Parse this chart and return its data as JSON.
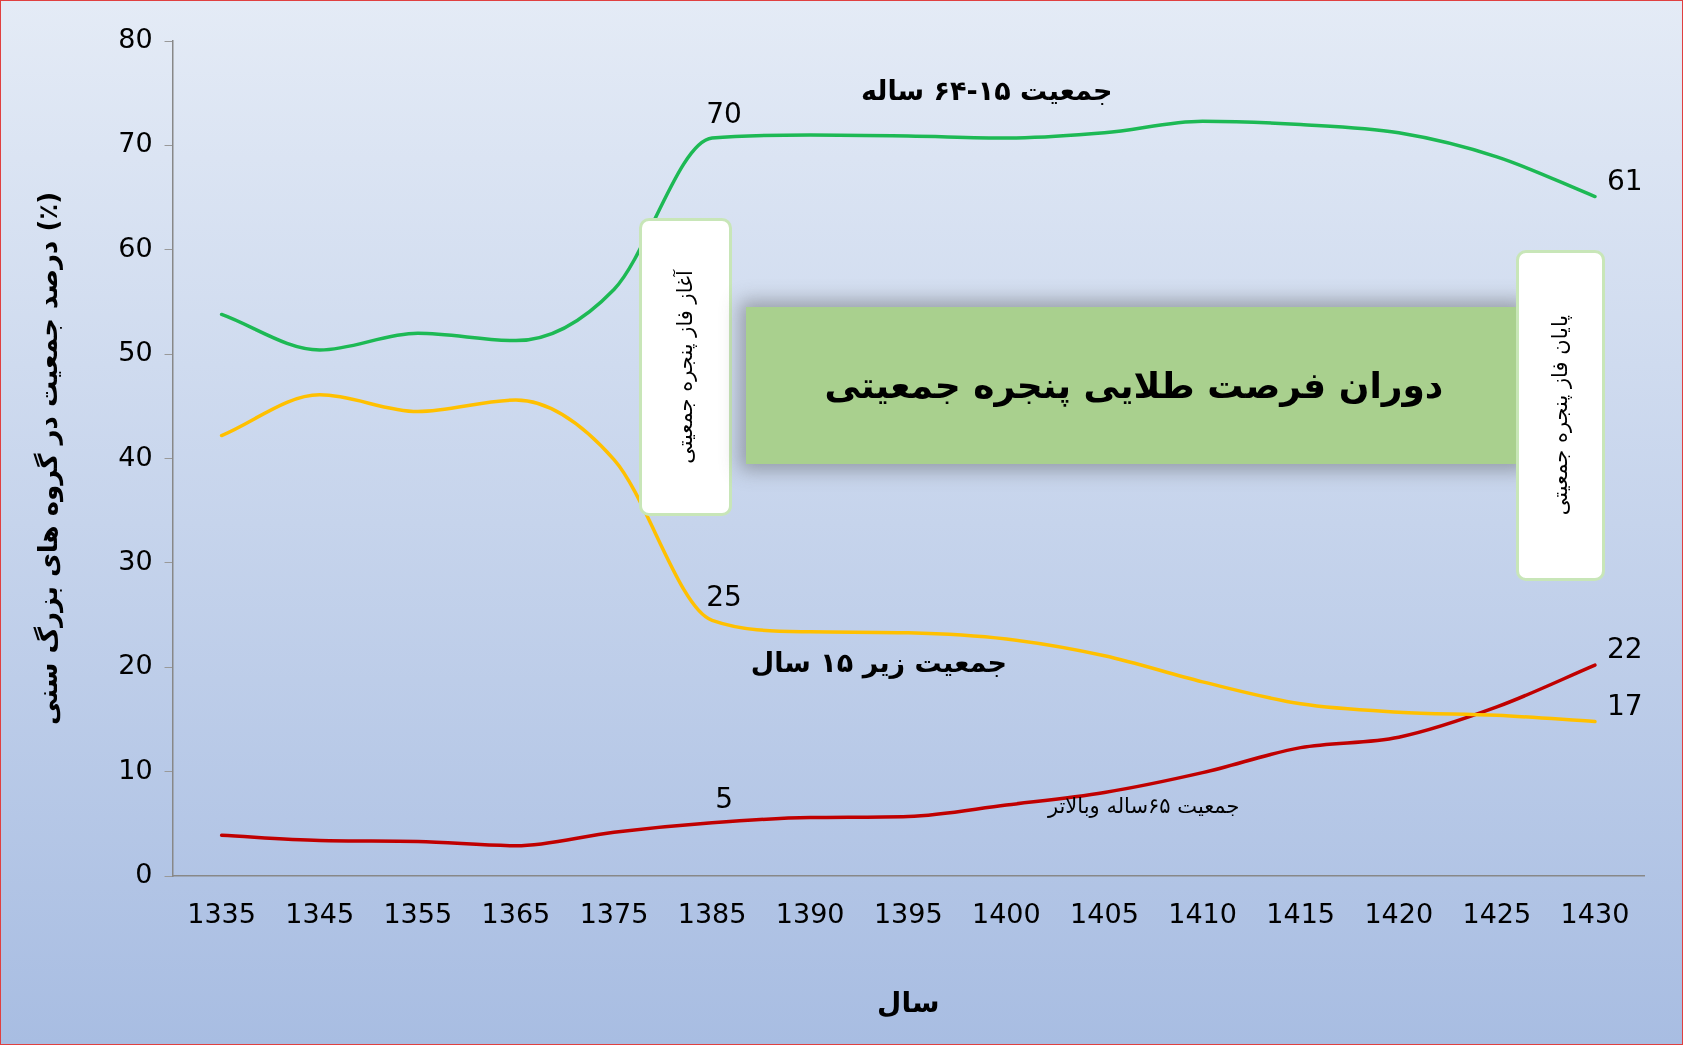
{
  "chart_data": {
    "type": "line",
    "xlabel": "سال",
    "ylabel": "درصد جمعیت در گروه های بزرگ سنی (٪)",
    "categories": [
      "1335",
      "1345",
      "1355",
      "1365",
      "1375",
      "1385",
      "1390",
      "1395",
      "1400",
      "1405",
      "1410",
      "1415",
      "1420",
      "1425",
      "1430"
    ],
    "series": [
      {
        "name": "جمعیت ۱۵-۶۴ ساله",
        "color": "#1db954",
        "values": [
          53.8,
          50.4,
          52.0,
          51.3,
          56.2,
          70.7,
          71.0,
          70.9,
          70.7,
          71.2,
          72.3,
          72.0,
          71.2,
          68.9,
          65.1
        ]
      },
      {
        "name": "جمعیت زیر ۱۵ سال",
        "color": "#ffc000",
        "values": [
          42.2,
          46.1,
          44.5,
          45.6,
          39.9,
          24.5,
          23.4,
          23.3,
          22.7,
          21.1,
          18.6,
          16.5,
          15.7,
          15.4,
          14.8
        ]
      },
      {
        "name": "جمعیت ۶۵ساله وبالاتر",
        "color": "#c00000",
        "values": [
          3.9,
          3.4,
          3.3,
          2.9,
          4.2,
          5.1,
          5.6,
          5.7,
          6.8,
          8.0,
          9.9,
          12.3,
          13.3,
          16.2,
          20.2
        ]
      }
    ],
    "ylim": [
      0,
      80
    ],
    "yticks": [
      0,
      10,
      20,
      30,
      40,
      50,
      60,
      70,
      80
    ],
    "grid": false,
    "legend": false,
    "marker": "none",
    "line_style": "solid",
    "annotations": [
      "آغاز فاز پنجره جمعیتی",
      "دوران فرصت طلایی پنجره جمعیتی",
      "پایان فاز پنجره جمعیتی",
      {
        "text": "70",
        "x": "1385",
        "y": 70.7
      },
      {
        "text": "61",
        "x": "1430",
        "y": 65.1
      },
      {
        "text": "25",
        "x": "1385",
        "y": 24.5
      },
      {
        "text": "17",
        "x": "1430",
        "y": 14.8
      },
      {
        "text": "5",
        "x": "1385",
        "y": 5.1
      },
      {
        "text": "22",
        "x": "1430",
        "y": 20.2
      }
    ]
  }
}
